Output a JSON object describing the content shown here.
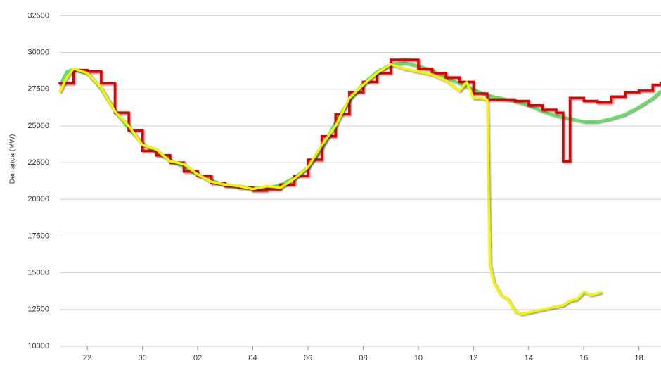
{
  "chart_data": {
    "type": "line",
    "y_label": "Demanda (MW)",
    "xlim": [
      21,
      42.8
    ],
    "ylim": [
      10000,
      33000
    ],
    "xticks": [
      {
        "value": 22,
        "label": "22"
      },
      {
        "value": 24,
        "label": "00"
      },
      {
        "value": 26,
        "label": "02"
      },
      {
        "value": 28,
        "label": "04"
      },
      {
        "value": 30,
        "label": "06"
      },
      {
        "value": 32,
        "label": "08"
      },
      {
        "value": 34,
        "label": "10"
      },
      {
        "value": 36,
        "label": "12"
      },
      {
        "value": 38,
        "label": "14"
      },
      {
        "value": 40,
        "label": "16"
      },
      {
        "value": 42,
        "label": "18"
      }
    ],
    "yticks": [
      10000,
      12500,
      15000,
      17500,
      20000,
      22500,
      25000,
      27500,
      30000,
      32500
    ],
    "grid": true,
    "series": [
      {
        "color": "#5ce65c",
        "x": [
          21,
          21.25,
          21.5,
          22,
          22.5,
          23,
          23.5,
          24,
          24.5,
          25,
          25.5,
          26,
          26.5,
          27,
          27.5,
          28,
          28.5,
          29,
          29.5,
          30,
          30.5,
          31,
          31.5,
          32,
          32.5,
          33,
          33.5,
          34,
          34.5,
          35,
          35.5,
          36,
          36.5,
          37,
          37.5,
          38,
          38.5,
          39,
          39.5,
          40,
          40.5,
          41,
          41.5,
          42,
          42.5,
          42.8
        ],
        "values": [
          27800,
          28700,
          28900,
          28600,
          27500,
          26000,
          24800,
          23800,
          23200,
          22700,
          22200,
          21700,
          21300,
          21000,
          20900,
          20800,
          20800,
          21000,
          21500,
          22200,
          23500,
          25300,
          26800,
          27900,
          28700,
          29200,
          29300,
          29100,
          28800,
          28300,
          27900,
          27500,
          27100,
          26900,
          26700,
          26400,
          26000,
          25700,
          25500,
          25300,
          25300,
          25500,
          25800,
          26300,
          26900,
          27400
        ]
      },
      {
        "color": "#e00000",
        "step": true,
        "x": [
          21,
          21.5,
          22,
          22.5,
          23,
          23.5,
          24,
          24.5,
          25,
          25.5,
          26,
          26.5,
          27,
          27.5,
          28,
          28.5,
          29,
          29.5,
          30,
          30.5,
          31,
          31.5,
          32,
          32.5,
          33,
          33.5,
          34,
          34.5,
          35,
          35.5,
          36,
          36.5,
          37,
          37.5,
          38,
          38.5,
          39,
          39.25,
          39.5,
          40,
          40.5,
          41,
          41.5,
          42,
          42.5,
          42.8
        ],
        "values": [
          27900,
          28800,
          28700,
          27900,
          25900,
          24700,
          23300,
          23000,
          22500,
          21900,
          21600,
          21100,
          20900,
          20800,
          20600,
          20700,
          21000,
          21600,
          22700,
          24300,
          25800,
          27300,
          28000,
          28600,
          29500,
          29500,
          28900,
          28600,
          28300,
          28000,
          27200,
          26800,
          26800,
          26700,
          26400,
          26100,
          25900,
          22600,
          26900,
          26700,
          26600,
          27000,
          27300,
          27400,
          27800,
          27900
        ]
      },
      {
        "color": "#f5f500",
        "x": [
          21,
          21.25,
          21.5,
          22,
          22.5,
          23,
          23.5,
          24,
          24.5,
          25,
          25.5,
          26,
          26.5,
          27,
          27.5,
          28,
          28.5,
          29,
          29.5,
          30,
          30.5,
          31,
          31.5,
          32,
          32.5,
          33,
          33.5,
          34,
          34.5,
          35,
          35.5,
          35.75,
          36,
          36.25,
          36.5,
          36.55,
          36.6,
          36.75,
          37,
          37.25,
          37.5,
          37.75,
          38,
          38.5,
          39,
          39.25,
          39.5,
          39.75,
          40,
          40.25,
          40.5,
          40.65
        ],
        "values": [
          27300,
          28300,
          28900,
          28600,
          27600,
          26000,
          25000,
          23700,
          23400,
          22600,
          22400,
          21700,
          21200,
          21000,
          20900,
          20700,
          20900,
          20800,
          21400,
          22200,
          23700,
          25000,
          26900,
          27800,
          28600,
          29200,
          28900,
          28700,
          28500,
          28100,
          27400,
          28000,
          26900,
          26900,
          26800,
          20000,
          15500,
          14300,
          13500,
          13200,
          12400,
          12200,
          12300,
          12500,
          12700,
          12800,
          13100,
          13200,
          13700,
          13500,
          13600,
          13700
        ]
      }
    ]
  }
}
